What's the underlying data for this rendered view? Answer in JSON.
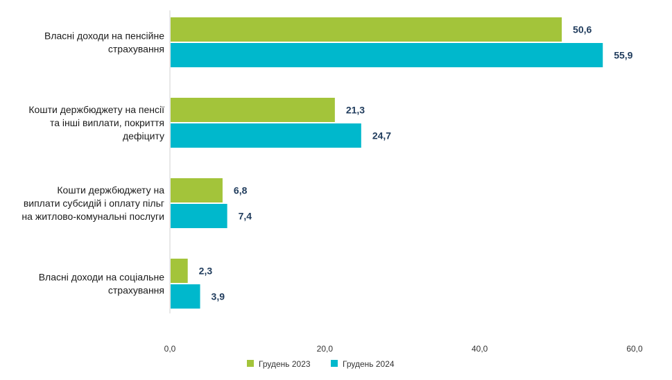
{
  "chart_data": {
    "type": "bar",
    "orientation": "horizontal",
    "categories": [
      [
        "Власні доходи на пенсійне",
        "страхування"
      ],
      [
        "Кошти держбюджету на пенсії",
        "та інші виплати, покриття",
        "дефіциту"
      ],
      [
        "Кошти держбюджету на",
        "виплати субсидій і оплату пільг",
        "на житлово-комунальні послуги"
      ],
      [
        "Власні доходи на соціальне",
        "страхування"
      ]
    ],
    "series": [
      {
        "name": "Грудень 2023",
        "values": [
          50.6,
          21.3,
          6.8,
          2.3
        ],
        "labels": [
          "50,6",
          "21,3",
          "6,8",
          "2,3"
        ],
        "color": "#a3c43a"
      },
      {
        "name": "Грудень 2024",
        "values": [
          55.9,
          24.7,
          7.4,
          3.9
        ],
        "labels": [
          "55,9",
          "24,7",
          "7,4",
          "3,9"
        ],
        "color": "#00b8cc"
      }
    ],
    "xlim": [
      0,
      60
    ],
    "xticks": [
      0,
      20,
      40,
      60
    ],
    "xtick_labels": [
      "0,0",
      "20,0",
      "40,0",
      "60,0"
    ],
    "grid": false,
    "legend_position": "bottom",
    "value_label_color": "#1f3b5c",
    "axis_color": "#d0d0d0"
  }
}
